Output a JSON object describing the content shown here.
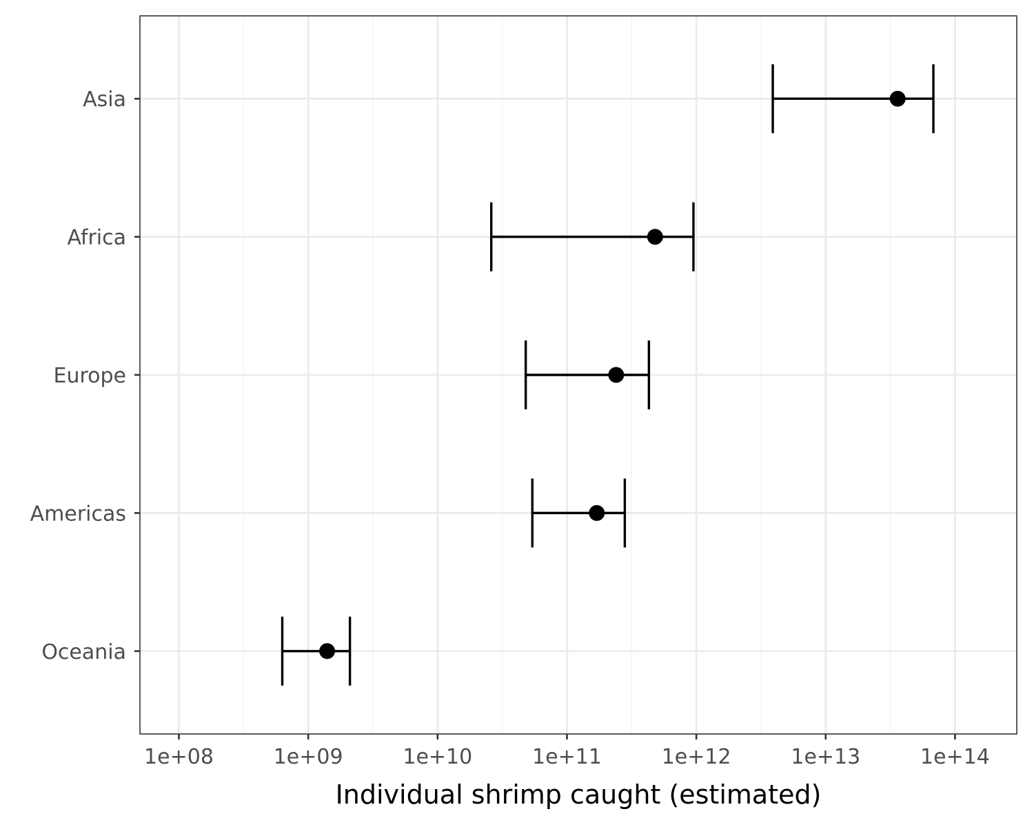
{
  "chart_data": {
    "type": "scatter",
    "variant": "point-with-errorbars",
    "title": "",
    "xlabel": "Individual shrimp caught (estimated)",
    "ylabel": "",
    "x_scale": "log10",
    "xlim": [
      50000000,
      300000000000000
    ],
    "x_ticks": [
      100000000,
      1000000000,
      10000000000,
      100000000000,
      1000000000000,
      10000000000000,
      100000000000000
    ],
    "x_tick_labels": [
      "1e+08",
      "1e+09",
      "1e+10",
      "1e+11",
      "1e+12",
      "1e+13",
      "1e+14"
    ],
    "categories": [
      "Asia",
      "Africa",
      "Europe",
      "Americas",
      "Oceania"
    ],
    "points": [
      {
        "category": "Asia",
        "estimate": 36000000000000,
        "lower": 3900000000000,
        "upper": 68000000000000
      },
      {
        "category": "Africa",
        "estimate": 480000000000,
        "lower": 26000000000,
        "upper": 950000000000
      },
      {
        "category": "Europe",
        "estimate": 240000000000,
        "lower": 48000000000,
        "upper": 430000000000
      },
      {
        "category": "Americas",
        "estimate": 170000000000,
        "lower": 54000000000,
        "upper": 280000000000
      },
      {
        "category": "Oceania",
        "estimate": 1400000000,
        "lower": 630000000,
        "upper": 2100000000
      }
    ],
    "grid": true,
    "legend": "none"
  }
}
